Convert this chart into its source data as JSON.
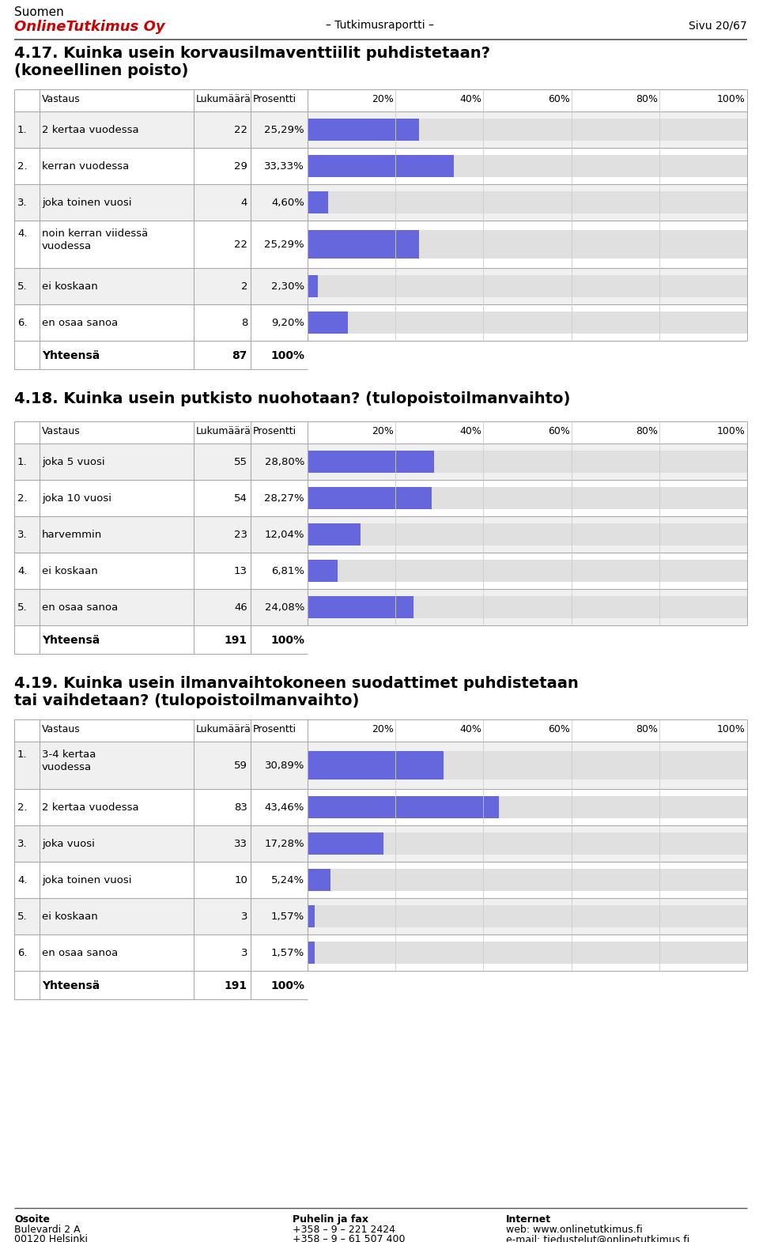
{
  "header": {
    "company_black": "Suomen",
    "company_red": "OnlineTutkimus Oy",
    "center": "– Tutkimusraportti –",
    "right": "Sivu 20/67"
  },
  "section1": {
    "title_line1": "4.17. Kuinka usein korvausilmaventtiilit puhdistetaan?",
    "title_line2": "(koneellinen poisto)",
    "rows": [
      {
        "num": "1.",
        "label": "2 kertaa vuodessa",
        "label2": "",
        "count": "22",
        "pct": "25,29%",
        "pct_val": 25.29
      },
      {
        "num": "2.",
        "label": "kerran vuodessa",
        "label2": "",
        "count": "29",
        "pct": "33,33%",
        "pct_val": 33.33
      },
      {
        "num": "3.",
        "label": "joka toinen vuosi",
        "label2": "",
        "count": "4",
        "pct": "4,60%",
        "pct_val": 4.6
      },
      {
        "num": "4.",
        "label": "noin kerran viidessä",
        "label2": "vuodessa",
        "count": "22",
        "pct": "25,29%",
        "pct_val": 25.29
      },
      {
        "num": "5.",
        "label": "ei koskaan",
        "label2": "",
        "count": "2",
        "pct": "2,30%",
        "pct_val": 2.3
      },
      {
        "num": "6.",
        "label": "en osaa sanoa",
        "label2": "",
        "count": "8",
        "pct": "9,20%",
        "pct_val": 9.2
      }
    ],
    "total_count": "87",
    "total_pct": "100%"
  },
  "section2": {
    "title_line1": "4.18. Kuinka usein putkisto nuohotaan? (tulopoistoilmanvaihto)",
    "title_line2": "",
    "rows": [
      {
        "num": "1.",
        "label": "joka 5 vuosi",
        "label2": "",
        "count": "55",
        "pct": "28,80%",
        "pct_val": 28.8
      },
      {
        "num": "2.",
        "label": "joka 10 vuosi",
        "label2": "",
        "count": "54",
        "pct": "28,27%",
        "pct_val": 28.27
      },
      {
        "num": "3.",
        "label": "harvemmin",
        "label2": "",
        "count": "23",
        "pct": "12,04%",
        "pct_val": 12.04
      },
      {
        "num": "4.",
        "label": "ei koskaan",
        "label2": "",
        "count": "13",
        "pct": "6,81%",
        "pct_val": 6.81
      },
      {
        "num": "5.",
        "label": "en osaa sanoa",
        "label2": "",
        "count": "46",
        "pct": "24,08%",
        "pct_val": 24.08
      }
    ],
    "total_count": "191",
    "total_pct": "100%"
  },
  "section3": {
    "title_line1": "4.19. Kuinka usein ilmanvaihtokoneen suodattimet puhdistetaan",
    "title_line2": "tai vaihdetaan? (tulopoistoilmanvaihto)",
    "rows": [
      {
        "num": "1.",
        "label": "3-4 kertaa",
        "label2": "vuodessa",
        "count": "59",
        "pct": "30,89%",
        "pct_val": 30.89
      },
      {
        "num": "2.",
        "label": "2 kertaa vuodessa",
        "label2": "",
        "count": "83",
        "pct": "43,46%",
        "pct_val": 43.46
      },
      {
        "num": "3.",
        "label": "joka vuosi",
        "label2": "",
        "count": "33",
        "pct": "17,28%",
        "pct_val": 17.28
      },
      {
        "num": "4.",
        "label": "joka toinen vuosi",
        "label2": "",
        "count": "10",
        "pct": "5,24%",
        "pct_val": 5.24
      },
      {
        "num": "5.",
        "label": "ei koskaan",
        "label2": "",
        "count": "3",
        "pct": "1,57%",
        "pct_val": 1.57
      },
      {
        "num": "6.",
        "label": "en osaa sanoa",
        "label2": "",
        "count": "3",
        "pct": "1,57%",
        "pct_val": 1.57
      }
    ],
    "total_count": "191",
    "total_pct": "100%"
  },
  "bar_color": "#6666dd",
  "bar_bg_color": "#e0e0e0",
  "border_color": "#aaaaaa",
  "row_bg_odd": "#f0f0f0",
  "row_bg_even": "#ffffff"
}
